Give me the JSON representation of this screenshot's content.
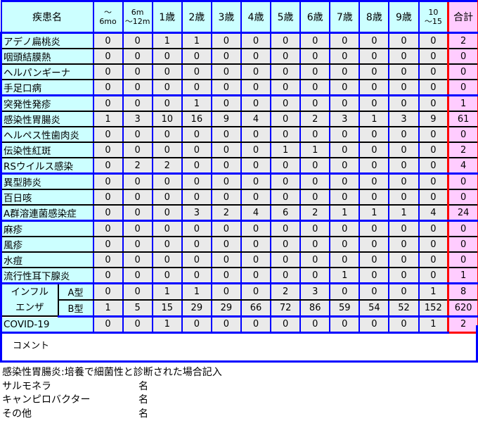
{
  "header": {
    "name": "疾患名",
    "age_groups": [
      "〜\n6mo",
      "6m\n〜12m",
      "1歳",
      "2歳",
      "3歳",
      "4歳",
      "5歳",
      "6歳",
      "7歳",
      "8歳",
      "9歳",
      "10\n〜15"
    ],
    "total": "合計"
  },
  "rows": [
    {
      "name": "アデノ扁桃炎",
      "values": [
        0,
        0,
        1,
        1,
        0,
        0,
        0,
        0,
        0,
        0,
        0,
        0
      ],
      "total": 2
    },
    {
      "name": "咽頭結膜熱",
      "values": [
        0,
        0,
        0,
        0,
        0,
        0,
        0,
        0,
        0,
        0,
        0,
        0
      ],
      "total": 0
    },
    {
      "name": "ヘルパンギーナ",
      "values": [
        0,
        0,
        0,
        0,
        0,
        0,
        0,
        0,
        0,
        0,
        0,
        0
      ],
      "total": 0
    },
    {
      "name": "手足口病",
      "values": [
        0,
        0,
        0,
        0,
        0,
        0,
        0,
        0,
        0,
        0,
        0,
        0
      ],
      "total": 0,
      "group_end": true
    },
    {
      "name": "突発性発疹",
      "values": [
        0,
        0,
        0,
        1,
        0,
        0,
        0,
        0,
        0,
        0,
        0,
        0
      ],
      "total": 1
    },
    {
      "name": "感染性胃腸炎",
      "values": [
        1,
        3,
        10,
        16,
        9,
        4,
        0,
        2,
        3,
        1,
        3,
        9
      ],
      "total": 61
    },
    {
      "name": "ヘルペス性歯肉炎",
      "values": [
        0,
        0,
        0,
        0,
        0,
        0,
        0,
        0,
        0,
        0,
        0,
        0
      ],
      "total": 0
    },
    {
      "name": "伝染性紅斑",
      "values": [
        0,
        0,
        0,
        0,
        0,
        0,
        1,
        1,
        0,
        0,
        0,
        0
      ],
      "total": 2
    },
    {
      "name": "RSウイルス感染",
      "values": [
        0,
        2,
        2,
        0,
        0,
        0,
        0,
        0,
        0,
        0,
        0,
        0
      ],
      "total": 4,
      "group_end": true
    },
    {
      "name": "異型肺炎",
      "values": [
        0,
        0,
        0,
        0,
        0,
        0,
        0,
        0,
        0,
        0,
        0,
        0
      ],
      "total": 0
    },
    {
      "name": "百日咳",
      "values": [
        0,
        0,
        0,
        0,
        0,
        0,
        0,
        0,
        0,
        0,
        0,
        0
      ],
      "total": 0
    },
    {
      "name": "A群溶連菌感染症",
      "values": [
        0,
        0,
        0,
        3,
        2,
        4,
        6,
        2,
        1,
        1,
        1,
        4
      ],
      "total": 24,
      "group_end": true
    },
    {
      "name": "麻疹",
      "values": [
        0,
        0,
        0,
        0,
        0,
        0,
        0,
        0,
        0,
        0,
        0,
        0
      ],
      "total": 0
    },
    {
      "name": "風疹",
      "values": [
        0,
        0,
        0,
        0,
        0,
        0,
        0,
        0,
        0,
        0,
        0,
        0
      ],
      "total": 0
    },
    {
      "name": "水痘",
      "values": [
        0,
        0,
        0,
        0,
        0,
        0,
        0,
        0,
        0,
        0,
        0,
        0
      ],
      "total": 0
    },
    {
      "name": "流行性耳下腺炎",
      "values": [
        0,
        0,
        0,
        0,
        0,
        0,
        0,
        0,
        1,
        0,
        0,
        0
      ],
      "total": 1,
      "group_end": true
    }
  ],
  "influenza": {
    "label": "インフル\nエンザ",
    "types": [
      {
        "name": "A型",
        "values": [
          0,
          0,
          1,
          1,
          0,
          0,
          2,
          3,
          0,
          0,
          0,
          1
        ],
        "total": 8
      },
      {
        "name": "B型",
        "values": [
          1,
          5,
          15,
          29,
          29,
          66,
          72,
          86,
          59,
          54,
          52,
          152
        ],
        "total": 620
      }
    ]
  },
  "covid": {
    "name": "COVID-19",
    "values": [
      0,
      0,
      1,
      0,
      0,
      0,
      0,
      0,
      0,
      0,
      0,
      1
    ],
    "total": 2
  },
  "comment": {
    "label": "コメント"
  },
  "notes": {
    "title": "感染性胃腸炎:培養で細菌性と診断された場合記入",
    "items": [
      {
        "label": "サルモネラ",
        "unit": "名"
      },
      {
        "label": "キャンピロバクター",
        "unit": "名"
      },
      {
        "label": "その他",
        "unit": "名"
      }
    ]
  },
  "colors": {
    "name_bg": "#ccffff",
    "value_bg": "#eaeaea",
    "total_bg": "#ffccff",
    "grid": "#0000ff",
    "total_border": "#ff0000"
  }
}
